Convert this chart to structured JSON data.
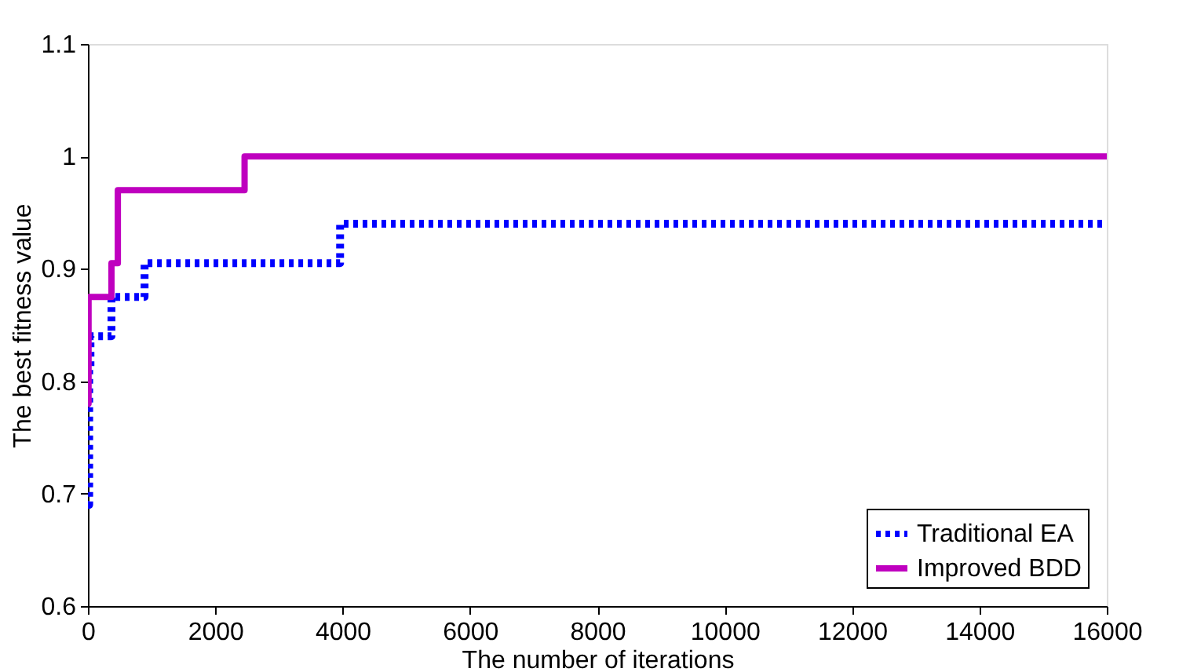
{
  "chart_data": {
    "type": "step",
    "xlabel": "The number of iterations",
    "ylabel": "The best fitness value",
    "xlim": [
      0,
      16000
    ],
    "ylim": [
      0.6,
      1.1
    ],
    "xticks": [
      0,
      2000,
      4000,
      6000,
      8000,
      10000,
      12000,
      14000,
      16000
    ],
    "yticks": [
      0.6,
      0.7,
      0.8,
      0.9,
      1,
      1.1
    ],
    "grid": false,
    "legend": "bottom right",
    "series": [
      {
        "name": "Traditional EA",
        "color": "#0000ff",
        "line_style": "dotted",
        "x": [
          0,
          20,
          40,
          100,
          370,
          890,
          3960,
          16000
        ],
        "values": [
          0.69,
          0.81,
          0.84,
          0.84,
          0.875,
          0.905,
          0.94,
          0.94
        ]
      },
      {
        "name": "Improved BDD",
        "color": "#bf00bf",
        "line_style": "solid",
        "x": [
          0,
          10,
          370,
          470,
          2460,
          16000
        ],
        "values": [
          0.78,
          0.875,
          0.905,
          0.97,
          1.0,
          1.0
        ]
      }
    ]
  }
}
